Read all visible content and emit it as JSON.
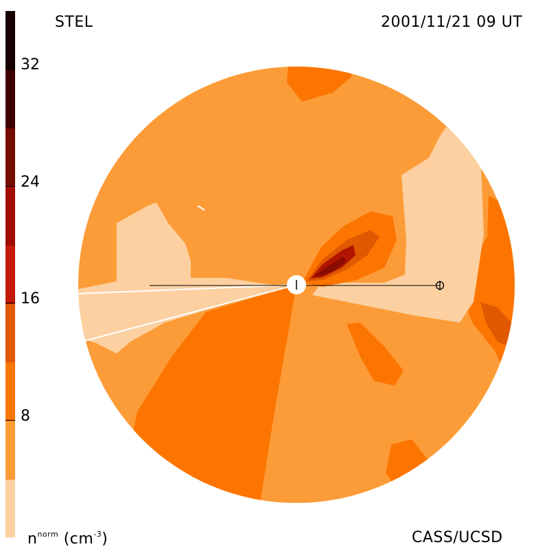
{
  "header": {
    "observatory": "STEL",
    "timestamp": "2001/11/21 09 UT"
  },
  "footer": {
    "credit": "CASS/UCSD",
    "unit_base": "n",
    "unit_sup": "norm",
    "unit_rest": " (cm",
    "unit_exp": "-3",
    "unit_close": ")"
  },
  "colorbar": {
    "ticks": [
      "8",
      "16",
      "24",
      "32"
    ],
    "colors": [
      "#fcd0a0",
      "#fc9c38",
      "#fc7500",
      "#e05800",
      "#c41a0a",
      "#a00c00",
      "#760c00",
      "#3c0000",
      "#160000"
    ]
  },
  "map": {
    "colors": {
      "lightest": "#fcd0a0",
      "light": "#fc9c38",
      "medium": "#fc7500",
      "dark": "#e05800",
      "darker": "#b01500",
      "darkest": "#8a0c00"
    },
    "sun_marker": "sun-icon",
    "earth_marker": "earth-icon"
  }
}
